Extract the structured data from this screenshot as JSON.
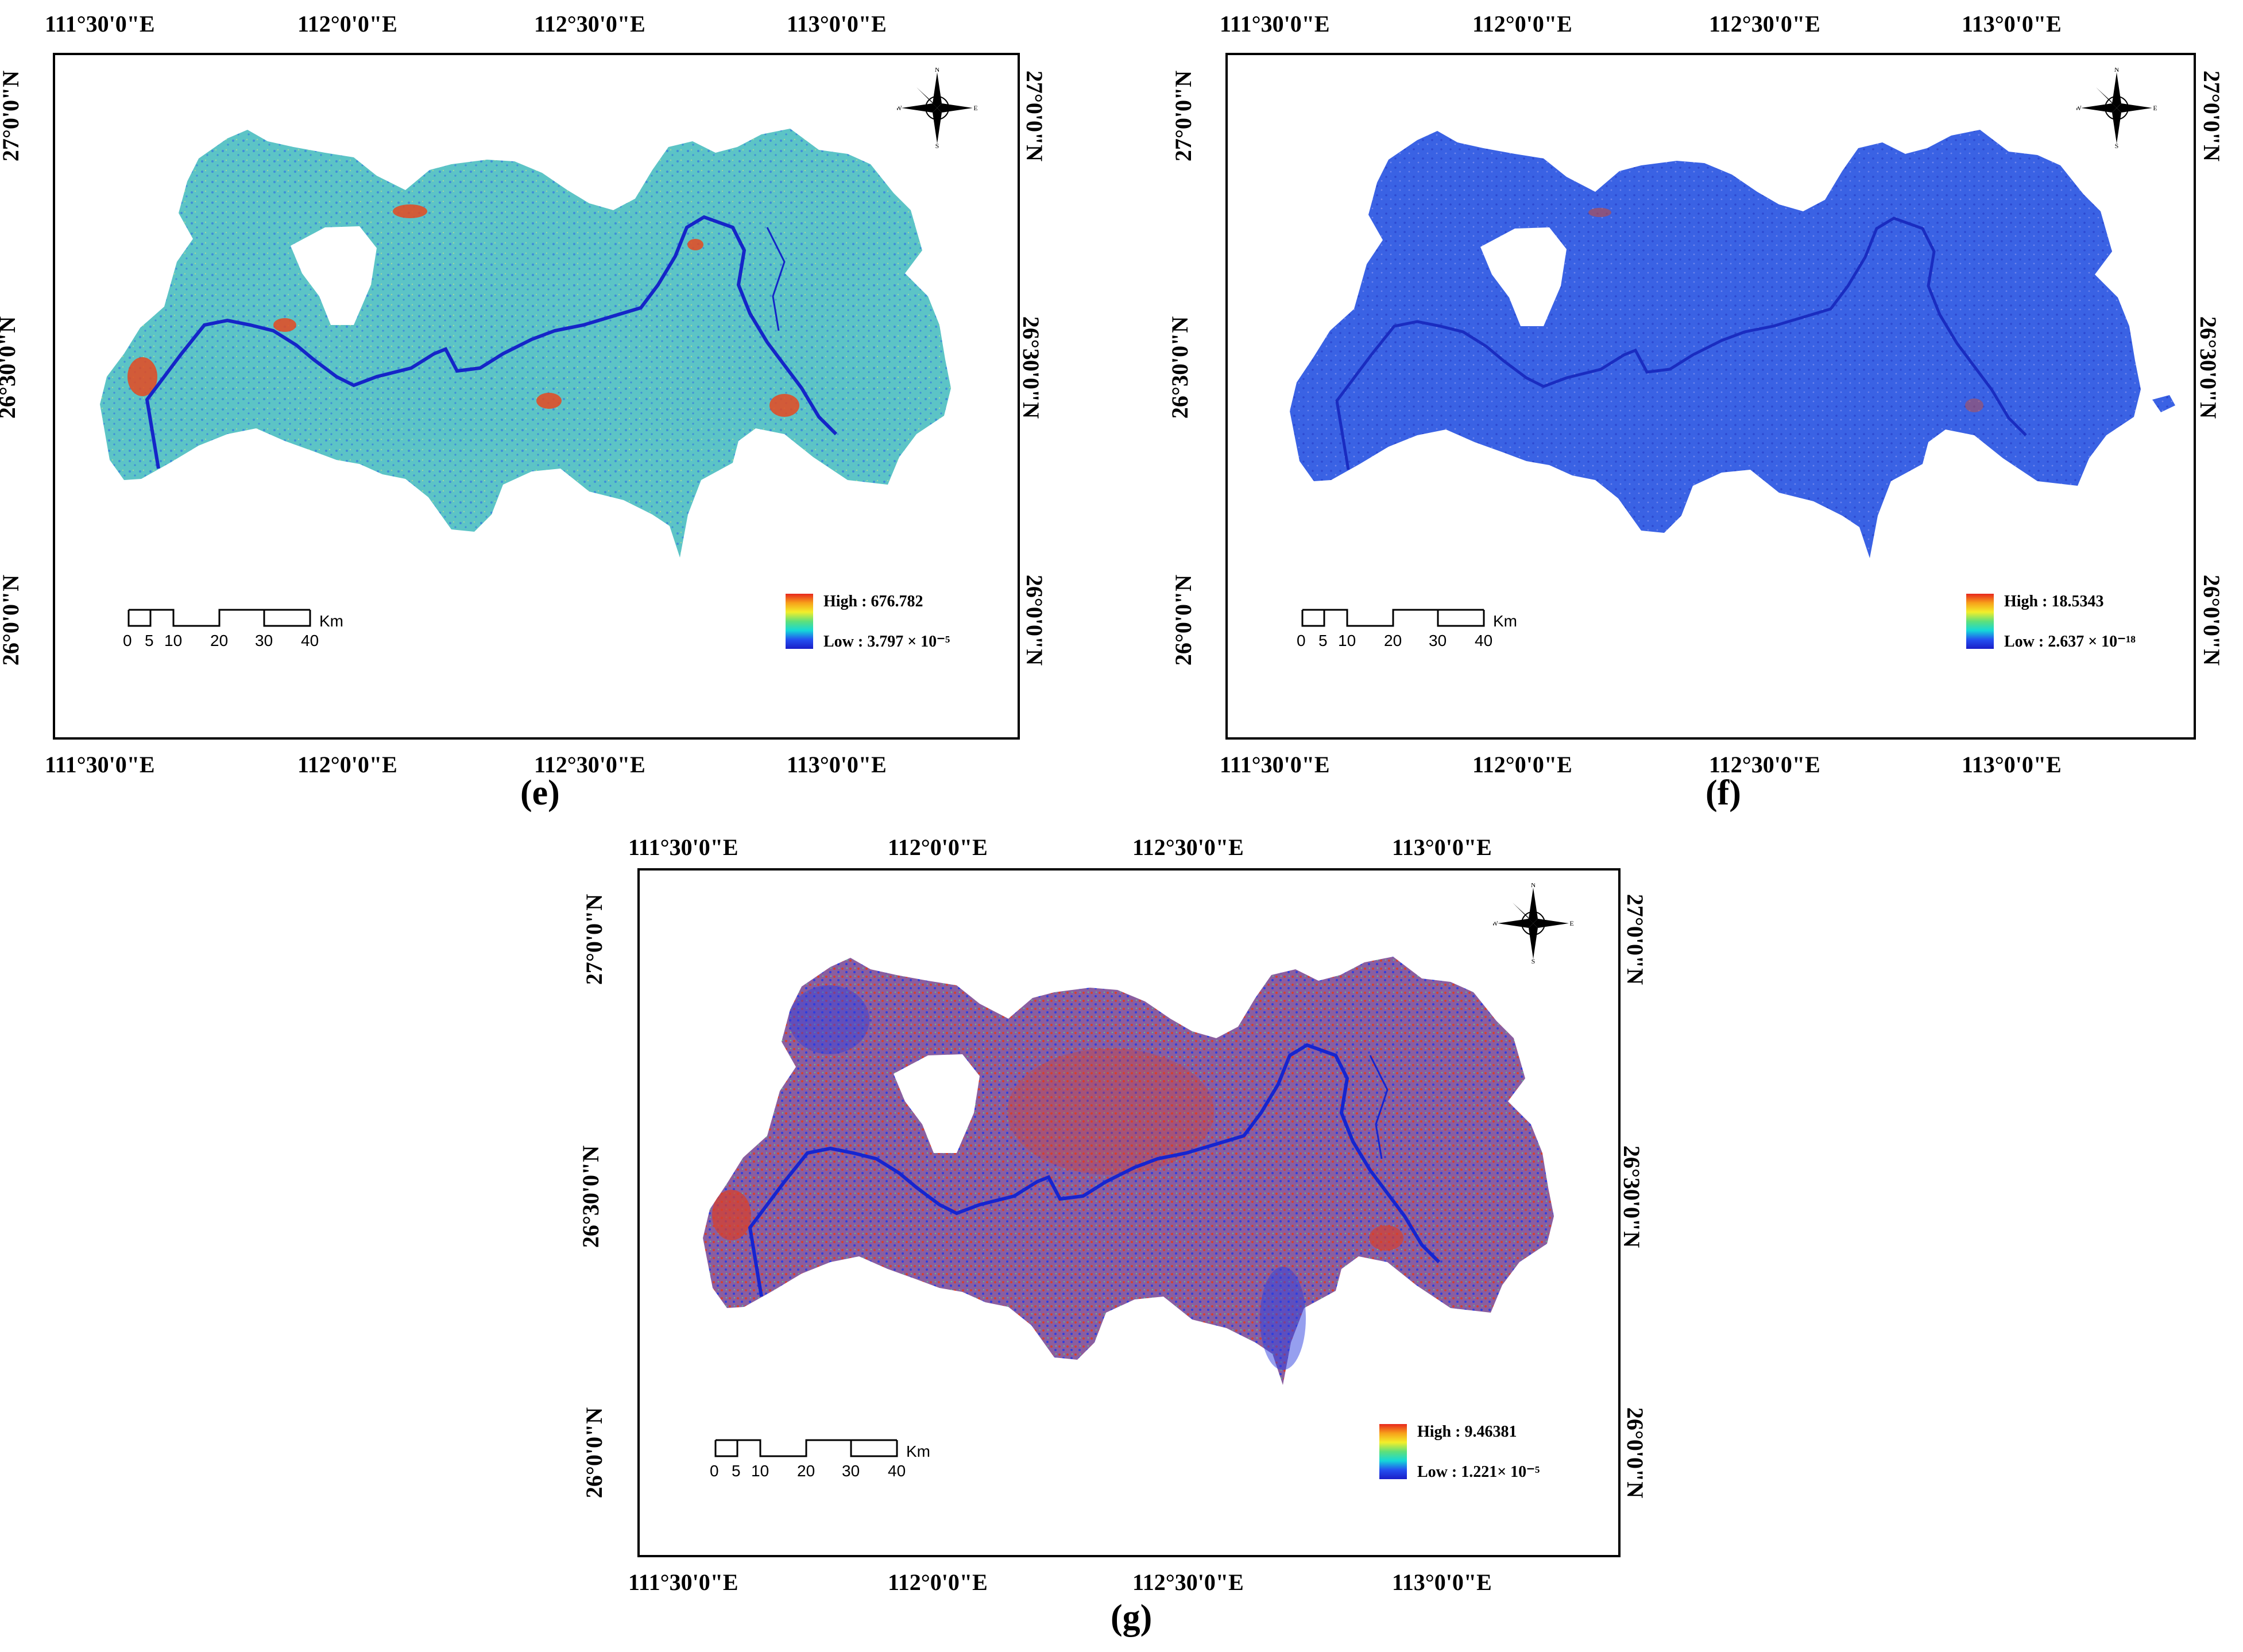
{
  "axes": {
    "longitude_ticks": [
      "111°30'0\"E",
      "112°0'0\"E",
      "112°30'0\"E",
      "113°0'0\"E"
    ],
    "latitude_ticks": [
      "27°0'0\"N",
      "26°30'0\"N",
      "26°0'0\"N"
    ]
  },
  "scale_bar": {
    "unit": "Km",
    "labels": [
      "0",
      "5",
      "10",
      "20",
      "30",
      "40"
    ]
  },
  "compass": {
    "north": "N",
    "south": "S",
    "east": "E",
    "west": "W"
  },
  "panels": [
    {
      "caption": "(e)",
      "legend_high": "High : 676.782",
      "legend_low": "Low : 3.797 × 10⁻⁵",
      "colors": {
        "base": "#5cc4c6",
        "accent": "#e6491f",
        "secondary": "#3f8fd8",
        "river": "#1525c8"
      }
    },
    {
      "caption": "(f)",
      "legend_high": "High : 18.5343",
      "legend_low": "Low : 2.637 × 10⁻¹⁸",
      "colors": {
        "base": "#3a62e4",
        "accent": "#c24b3e",
        "secondary": "#2c48d0",
        "river": "#1a2cc0"
      }
    },
    {
      "caption": "(g)",
      "legend_high": "High : 9.46381",
      "legend_low": "Low : 1.221× 10⁻⁵",
      "colors": {
        "base": "#8a5ea0",
        "accent": "#d6402e",
        "secondary": "#2d3fe0",
        "river": "#1525d0"
      }
    }
  ]
}
